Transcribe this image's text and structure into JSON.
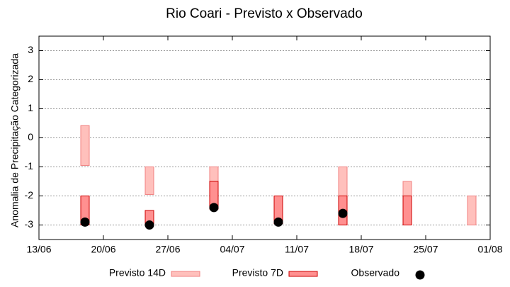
{
  "chart_data": {
    "type": "range-bar",
    "title": "Rio Coari - Previsto x Observado",
    "y_label": "Anomalia de Precipitação Categorizada",
    "x": [
      "18/06",
      "25/06",
      "02/07",
      "09/07",
      "16/07",
      "23/07",
      "30/07"
    ],
    "xlim": [
      "13/06",
      "01/08"
    ],
    "xticks": [
      "13/06",
      "20/06",
      "27/06",
      "04/07",
      "11/07",
      "18/07",
      "25/07",
      "01/08"
    ],
    "ylim": [
      -3.5,
      3.5
    ],
    "yticks": [
      3,
      2,
      1,
      0,
      -1,
      -2,
      -3
    ],
    "grid": true,
    "series": [
      {
        "name": "Previsto 14D",
        "color": "#ffc0bc",
        "stroke": "#f08080",
        "low": [
          -0.95,
          -1.95,
          -1.5,
          null,
          -3,
          -2,
          -3
        ],
        "high": [
          0.42,
          -1,
          -1,
          null,
          -1,
          -1.5,
          -2
        ]
      },
      {
        "name": "Previsto 7D",
        "color": "#ff9090",
        "stroke": "#cc0000",
        "low": [
          -3,
          -3,
          -2.45,
          -2.95,
          -3,
          -3,
          null
        ],
        "high": [
          -2,
          -2.5,
          -1.5,
          -2,
          -2,
          -2,
          null
        ]
      },
      {
        "name": "Observado",
        "color": "#000000",
        "values": [
          -2.9,
          -3.0,
          -2.4,
          -2.9,
          -2.6,
          null,
          null
        ]
      }
    ]
  }
}
